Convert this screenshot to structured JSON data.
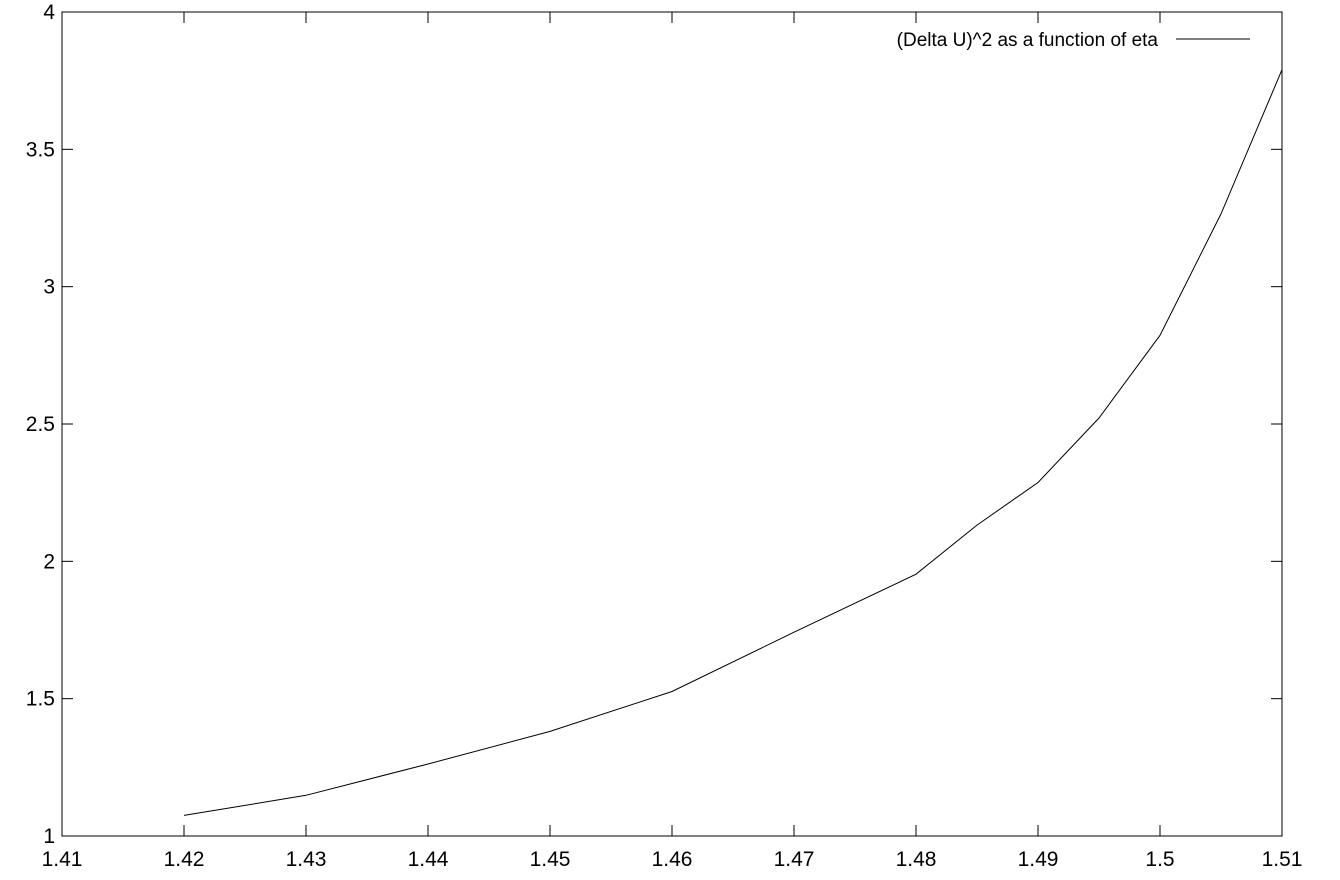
{
  "chart_data": {
    "type": "line",
    "title": "",
    "xlabel": "",
    "ylabel": "",
    "xlim": [
      1.41,
      1.51
    ],
    "ylim": [
      1,
      4
    ],
    "grid": false,
    "legend_position": "top-right",
    "x_ticks": [
      1.41,
      1.42,
      1.43,
      1.44,
      1.45,
      1.46,
      1.47,
      1.48,
      1.49,
      1.5,
      1.51
    ],
    "x_tick_labels": [
      "1.41",
      "1.42",
      "1.43",
      "1.44",
      "1.45",
      "1.46",
      "1.47",
      "1.48",
      "1.49",
      "1.5",
      "1.51"
    ],
    "y_ticks": [
      1,
      1.5,
      2,
      2.5,
      3,
      3.5,
      4
    ],
    "y_tick_labels": [
      "1",
      "1.5",
      "2",
      "2.5",
      "3",
      "3.5",
      "4"
    ],
    "series": [
      {
        "name": "(Delta U)^2 as a function of eta",
        "color": "#000000",
        "x": [
          1.42,
          1.43,
          1.44,
          1.45,
          1.46,
          1.47,
          1.48,
          1.485,
          1.49,
          1.495,
          1.5,
          1.505,
          1.51
        ],
        "y": [
          1.075,
          1.148,
          1.262,
          1.381,
          1.526,
          1.742,
          1.953,
          2.132,
          2.287,
          2.522,
          2.823,
          3.265,
          3.79
        ]
      }
    ]
  }
}
